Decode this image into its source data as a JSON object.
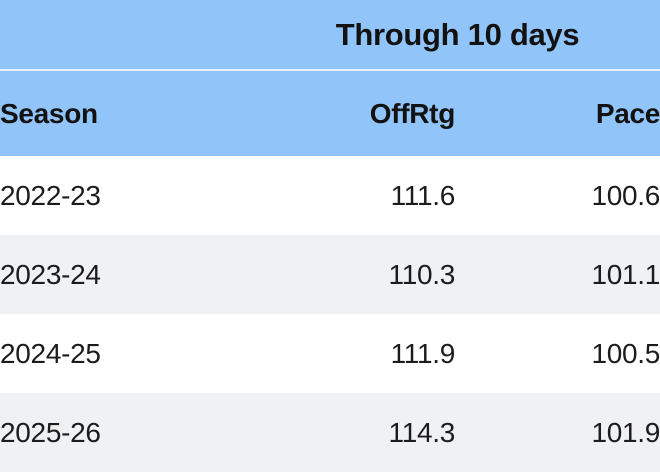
{
  "colors": {
    "header_blue": "#91c4f8",
    "row_white": "#ffffff",
    "row_gray": "#f0f1f3",
    "header_separator": "#e8f2fe",
    "text_dark": "#121212"
  },
  "table": {
    "group_header": "Through 10 days",
    "columns": {
      "season": "Season",
      "offrtg": "OffRtg",
      "pace": "Pace"
    },
    "rows": [
      {
        "season": "2022-23",
        "offrtg": "111.6",
        "pace": "100.6"
      },
      {
        "season": "2023-24",
        "offrtg": "110.3",
        "pace": "101.1"
      },
      {
        "season": "2024-25",
        "offrtg": "111.9",
        "pace": "100.5"
      },
      {
        "season": "2025-26",
        "offrtg": "114.3",
        "pace": "101.9"
      }
    ]
  },
  "chart_data": {
    "type": "table",
    "title": "Through 10 days",
    "columns": [
      "Season",
      "OffRtg",
      "Pace"
    ],
    "rows": [
      [
        "2022-23",
        111.6,
        100.6
      ],
      [
        "2023-24",
        110.3,
        101.1
      ],
      [
        "2024-25",
        111.9,
        100.5
      ],
      [
        "2025-26",
        114.3,
        101.9
      ]
    ]
  }
}
